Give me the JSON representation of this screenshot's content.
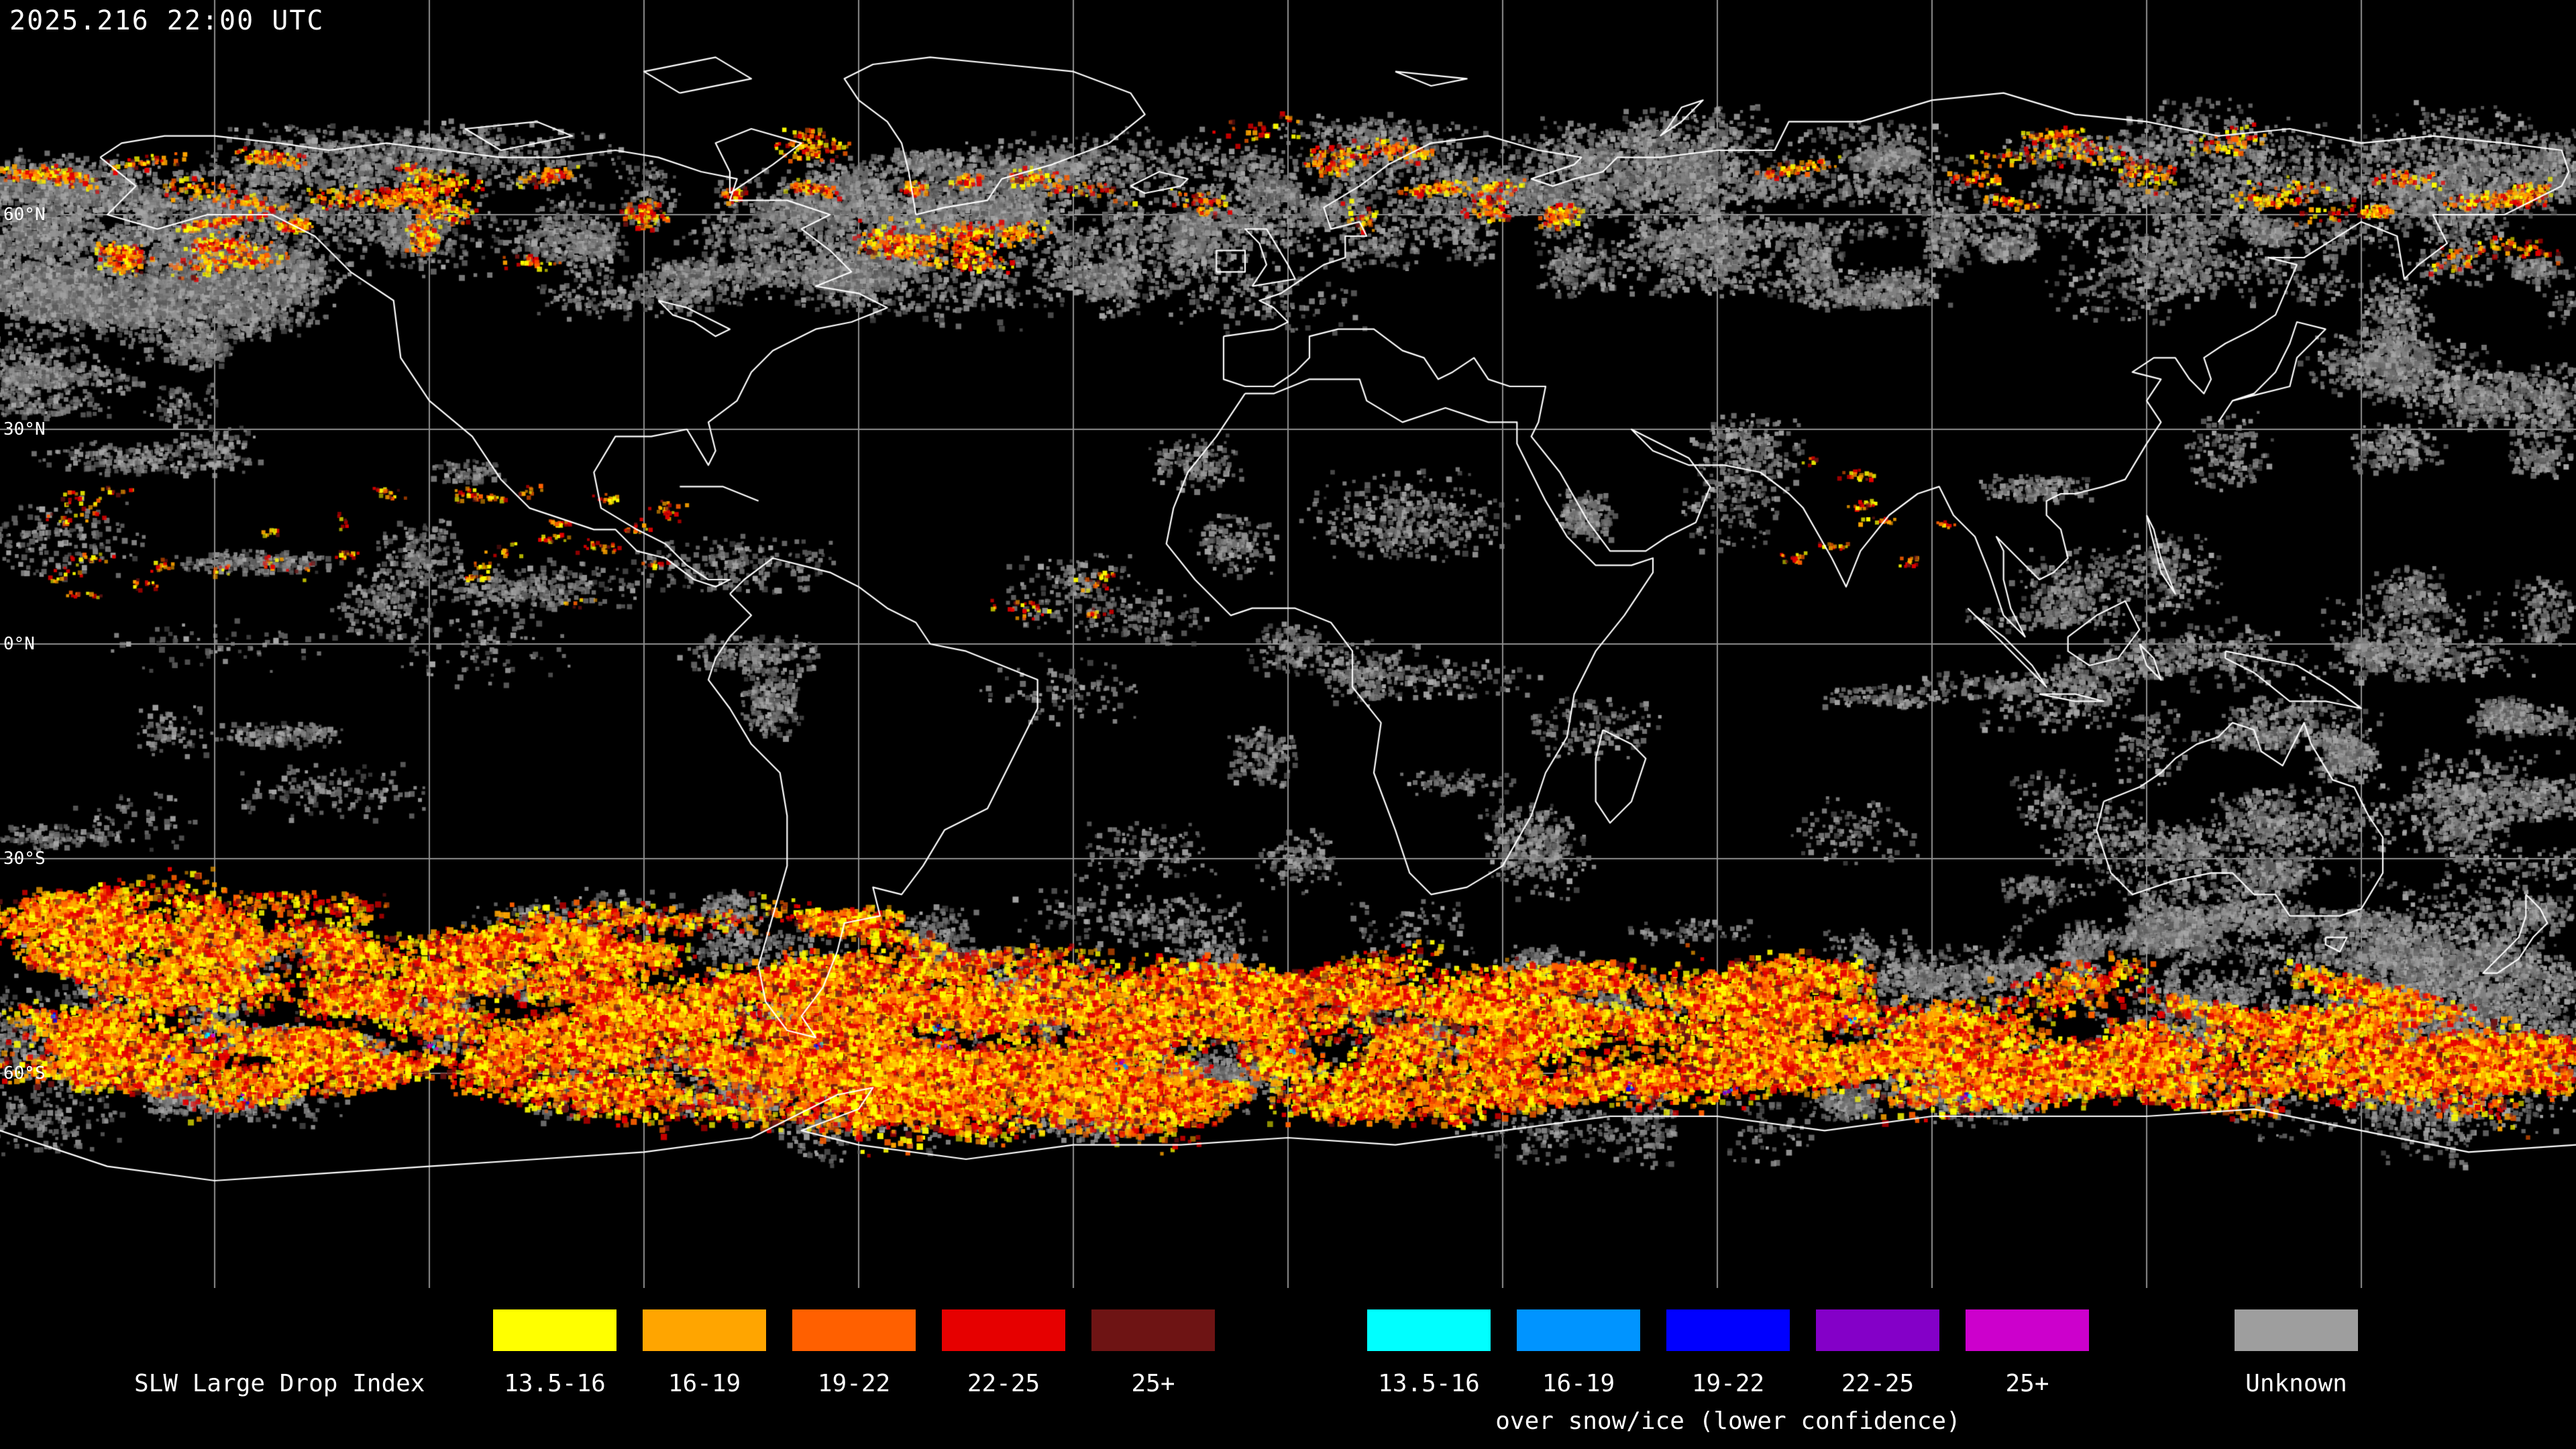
{
  "header": {
    "timestamp": "2025.216 22:00 UTC"
  },
  "map": {
    "background_color": "#000000",
    "grid_color": "#a0a0a0",
    "coastline_color": "#ffffff",
    "latitude_labels": [
      {
        "label": "60°N",
        "lat": 60
      },
      {
        "label": "30°N",
        "lat": 30
      },
      {
        "label": "0°N",
        "lat": 0
      },
      {
        "label": "30°S",
        "lat": -30
      },
      {
        "label": "60°S",
        "lat": -60
      }
    ]
  },
  "legend": {
    "title": "SLW Large Drop Index",
    "primary": {
      "items": [
        {
          "label": "13.5-16",
          "color": "#ffff00"
        },
        {
          "label": "16-19",
          "color": "#ffa500"
        },
        {
          "label": "19-22",
          "color": "#ff6000"
        },
        {
          "label": "22-25",
          "color": "#e60000"
        },
        {
          "label": "25+",
          "color": "#6e1414"
        }
      ]
    },
    "snow_ice": {
      "subtitle": "over snow/ice (lower confidence)",
      "items": [
        {
          "label": "13.5-16",
          "color": "#00ffff"
        },
        {
          "label": "16-19",
          "color": "#0094ff"
        },
        {
          "label": "19-22",
          "color": "#0000ff"
        },
        {
          "label": "22-25",
          "color": "#8400c8"
        },
        {
          "label": "25+",
          "color": "#cc00cc"
        }
      ]
    },
    "unknown": {
      "label": "Unknown",
      "color": "#9e9e9e"
    }
  }
}
